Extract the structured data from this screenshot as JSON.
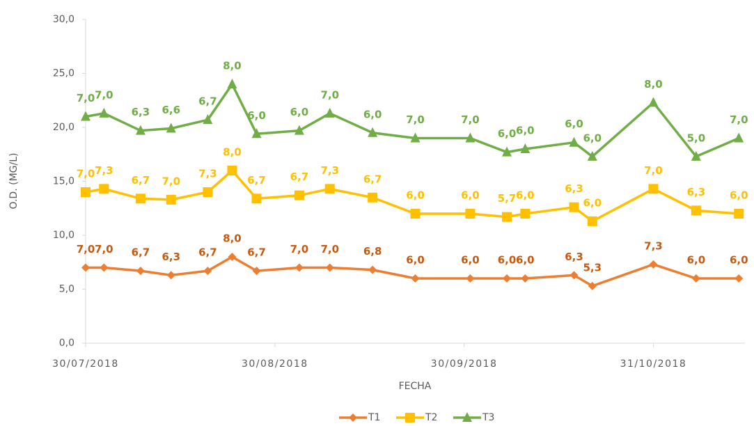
{
  "chart_data": {
    "type": "line",
    "stacked": true,
    "y_label": "O.D. (MG/L)",
    "x_label": "FECHA",
    "x": [
      "30/07/2018",
      "02/08/2018",
      "08/08/2018",
      "13/08/2018",
      "19/08/2018",
      "23/08/2018",
      "27/08/2018",
      "03/09/2018",
      "08/09/2018",
      "15/09/2018",
      "22/09/2018",
      "01/10/2018",
      "07/10/2018",
      "10/10/2018",
      "18/10/2018",
      "21/10/2018",
      "31/10/2018",
      "07/11/2018",
      "14/11/2018"
    ],
    "xlim": [
      "30/07/2018",
      "15/11/2018"
    ],
    "xticks": [
      "30/07/2018",
      "30/08/2018",
      "30/09/2018",
      "31/10/2018"
    ],
    "ylim": [
      0,
      30
    ],
    "yticks": [
      {
        "value": 0,
        "label": "0,0"
      },
      {
        "value": 5,
        "label": "5,0"
      },
      {
        "value": 10,
        "label": "10,0"
      },
      {
        "value": 15,
        "label": "15,0"
      },
      {
        "value": 20,
        "label": "20,0"
      },
      {
        "value": 25,
        "label": "25,0"
      },
      {
        "value": 30,
        "label": "30,0"
      }
    ],
    "legend": "bottom",
    "series": [
      {
        "name": "T1",
        "color": "#ED7D31",
        "label_color": "#C55A11",
        "marker": "diamond",
        "values": [
          7.0,
          7.0,
          6.7,
          6.3,
          6.7,
          8.0,
          6.7,
          7.0,
          7.0,
          6.8,
          6.0,
          6.0,
          6.0,
          6.0,
          6.3,
          5.3,
          7.3,
          6.0,
          6.0
        ],
        "value_labels": [
          "7,0",
          "7,0",
          "6,7",
          "6,3",
          "6,7",
          "8,0",
          "6,7",
          "7,0",
          "7,0",
          "6,8",
          "6,0",
          "6,0",
          "6,0",
          "6,0",
          "6,3",
          "5,3",
          "7,3",
          "6,0",
          "6,0"
        ]
      },
      {
        "name": "T2",
        "color": "#FFC000",
        "label_color": "#FFC000",
        "marker": "square",
        "values": [
          7.0,
          7.3,
          6.7,
          7.0,
          7.3,
          8.0,
          6.7,
          6.7,
          7.3,
          6.7,
          6.0,
          6.0,
          5.7,
          6.0,
          6.3,
          6.0,
          7.0,
          6.3,
          6.0
        ],
        "value_labels": [
          "7,0",
          "7,3",
          "6,7",
          "7,0",
          "7,3",
          "8,0",
          "6,7",
          "6,7",
          "7,3",
          "6,7",
          "6,0",
          "6,0",
          "5,7",
          "6,0",
          "6,3",
          "6,0",
          "7,0",
          "6,3",
          "6,0"
        ]
      },
      {
        "name": "T3",
        "color": "#70AD47",
        "label_color": "#70AD47",
        "marker": "triangle",
        "values": [
          7.0,
          7.0,
          6.3,
          6.6,
          6.7,
          8.0,
          6.0,
          6.0,
          7.0,
          6.0,
          7.0,
          7.0,
          6.0,
          6.0,
          6.0,
          6.0,
          8.0,
          5.0,
          7.0
        ],
        "value_labels": [
          "7,0",
          "7,0",
          "6,3",
          "6,6",
          "6,7",
          "8,0",
          "6,0",
          "6,0",
          "7,0",
          "6,0",
          "7,0",
          "7,0",
          "6,0",
          "6,0",
          "6,0",
          "6,0",
          "8,0",
          "5,0",
          "7,0"
        ]
      }
    ]
  }
}
